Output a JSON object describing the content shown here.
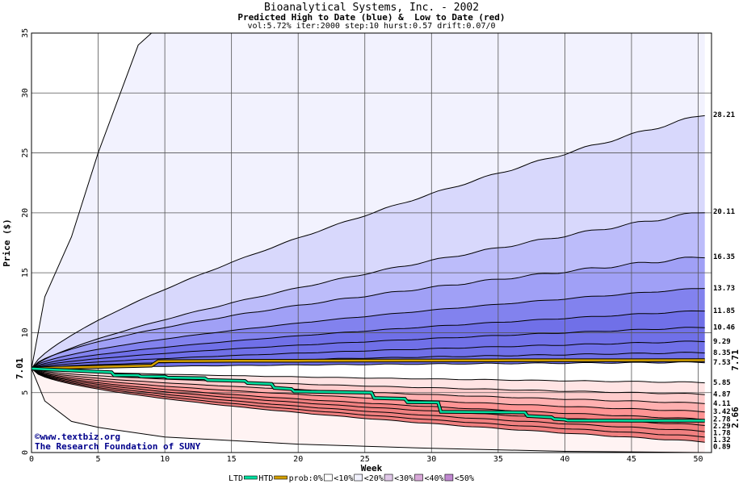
{
  "header": {
    "title": "Bioanalytical Systems, Inc. - 2002",
    "subtitle": "Predicted High to Date (blue) &  Low to Date (red)",
    "params": "vol:5.72% iter:2000 step:10 hurst:0.57 drift:0.07/0"
  },
  "credits": {
    "site": "©www.textbiz.org",
    "org": "The Research Foundation of SUNY"
  },
  "legend": {
    "ltd": "LTD",
    "htd": "HTD",
    "prob": "prob:0%",
    "b10": "<10%",
    "b20": "<20%",
    "b30": "<30%",
    "b40": "<40%",
    "b50": "<50%"
  },
  "colors": {
    "htd": "#00e0a0",
    "ltd": "#000000",
    "gold": "#d4a000",
    "blue_bands": [
      "#f2f2fe",
      "#d8d8fc",
      "#bcbcfa",
      "#a0a0f6",
      "#8282ee",
      "#7070e8"
    ],
    "red_bands": [
      "#ffffff",
      "#ffe4e4",
      "#ffcccc",
      "#ffb0b0",
      "#ff9494",
      "#f08080"
    ]
  },
  "chart_data": {
    "type": "area",
    "xlabel": "Week",
    "ylabel": "Price ($)",
    "xlim": [
      0,
      51
    ],
    "ylim": [
      0,
      35
    ],
    "xticks": [
      0,
      5,
      10,
      15,
      20,
      25,
      30,
      35,
      40,
      45,
      50
    ],
    "yticks": [
      0,
      5,
      10,
      15,
      20,
      25,
      30,
      35
    ],
    "start_price": 7.01,
    "start_label": "7.01",
    "htd_end_label": "7.71",
    "ltd_end_label": "2.66",
    "high_percentile_end_values": [
      28.21,
      20.11,
      16.35,
      13.73,
      11.85,
      10.46,
      9.29,
      8.35,
      7.53
    ],
    "low_percentile_end_values": [
      5.85,
      4.87,
      4.11,
      3.42,
      2.78,
      2.29,
      1.78,
      1.32,
      0.89
    ],
    "right_labels": [
      "28.21",
      "20.11",
      "16.35",
      "13.73",
      "11.85",
      "10.46",
      "9.29",
      "8.35",
      "7.53",
      "5.85",
      "4.87",
      "4.11",
      "3.42",
      "2.78",
      "2.29",
      "1.78",
      "1.32",
      "0.89"
    ],
    "htd_series": {
      "x": [
        0,
        1,
        3,
        5,
        7,
        9,
        9.5,
        15,
        20,
        25,
        30,
        35,
        40,
        45,
        50.5
      ],
      "y": [
        7.01,
        7.05,
        7.1,
        7.15,
        7.2,
        7.25,
        7.62,
        7.65,
        7.66,
        7.67,
        7.68,
        7.69,
        7.7,
        7.7,
        7.71
      ]
    },
    "ltd_series": {
      "x": [
        0,
        1,
        3,
        5,
        6,
        6.2,
        8,
        8.2,
        10,
        10.2,
        13,
        13.2,
        16,
        16.2,
        18,
        18.2,
        19.5,
        19.7,
        25.5,
        25.7,
        28,
        28.2,
        30.5,
        30.7,
        37,
        37.2,
        39,
        39.2,
        40,
        40.2,
        45,
        50.5
      ],
      "y": [
        7.01,
        6.95,
        6.85,
        6.75,
        6.7,
        6.45,
        6.45,
        6.35,
        6.35,
        6.25,
        6.2,
        6.05,
        5.98,
        5.8,
        5.72,
        5.4,
        5.3,
        5.1,
        5.0,
        4.55,
        4.48,
        4.2,
        4.18,
        3.4,
        3.35,
        3.05,
        2.95,
        2.8,
        2.75,
        2.68,
        2.66,
        2.66
      ]
    },
    "max_envelope": {
      "x": [
        0,
        1,
        2,
        3,
        5,
        7,
        8,
        9,
        9.4
      ],
      "y": [
        7.01,
        13,
        15.5,
        18,
        25,
        31,
        34,
        35,
        35
      ]
    },
    "min_envelope": {
      "x": [
        0,
        1,
        3,
        5,
        10,
        20,
        30,
        40,
        50.5
      ],
      "y": [
        7.01,
        4.3,
        2.6,
        2.1,
        1.3,
        0.7,
        0.35,
        0.1,
        0.0
      ]
    }
  }
}
